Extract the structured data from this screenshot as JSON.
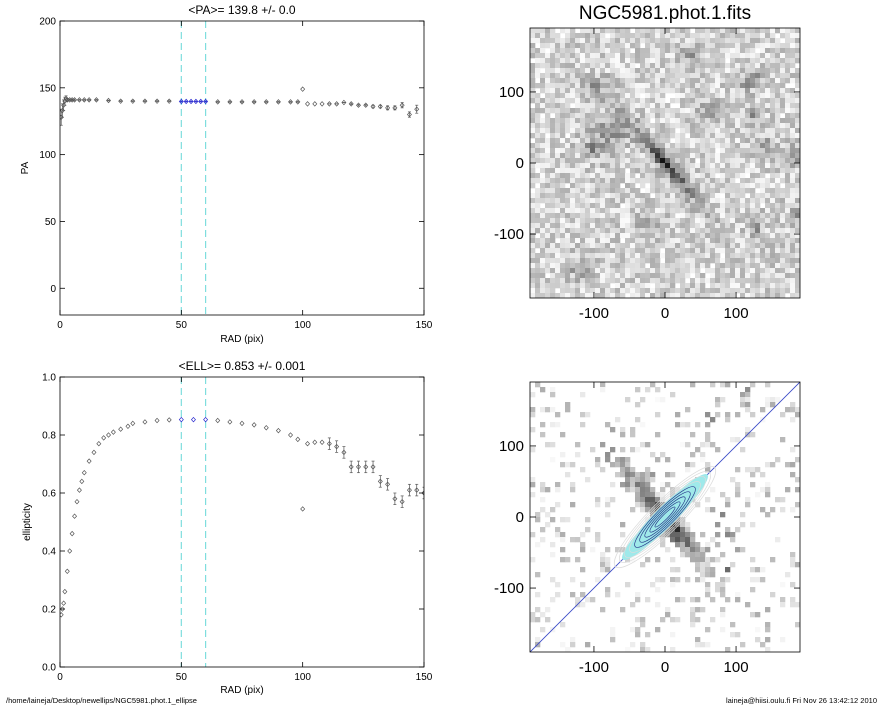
{
  "chart_data": [
    {
      "type": "scatter",
      "title": "<PA>= 139.8 +/-   0.0",
      "xlabel": "RAD (pix)",
      "ylabel": "PA",
      "xlim": [
        0,
        150
      ],
      "ylim": [
        -20,
        200
      ],
      "xticks": [
        "0",
        "50",
        "100",
        "150"
      ],
      "yticks": [
        "0",
        "50",
        "100",
        "150",
        "200"
      ],
      "vlines": [
        50,
        60
      ],
      "highlight_range": [
        50,
        60
      ],
      "series": [
        {
          "x": [
            0.5,
            1,
            1.5,
            2,
            2.5,
            3,
            4,
            5,
            6,
            8,
            10,
            12,
            15,
            20,
            25,
            30,
            35,
            40,
            45,
            50,
            52,
            54,
            56,
            58,
            60,
            65,
            70,
            75,
            80,
            85,
            90,
            95,
            98,
            100,
            102,
            105,
            108,
            111,
            114,
            117,
            120,
            123,
            126,
            129,
            132,
            135,
            138,
            141,
            144,
            147
          ],
          "y": [
            128,
            133,
            137,
            140,
            142,
            141,
            141,
            141,
            141,
            141,
            141,
            141,
            141,
            140.5,
            140,
            140,
            140,
            140,
            140,
            139.8,
            139.8,
            139.8,
            139.8,
            139.8,
            139.8,
            139.5,
            139.5,
            139.5,
            139.5,
            139.5,
            139.5,
            139.5,
            139.5,
            149,
            138,
            138,
            138,
            138,
            138,
            139,
            138,
            137,
            137,
            136,
            136,
            135,
            135,
            137,
            130,
            134
          ],
          "err": [
            6,
            5,
            4,
            3,
            2,
            1,
            0.5,
            0.5,
            0.5,
            0.3,
            0.3,
            0.3,
            0.3,
            0.3,
            0.3,
            0.3,
            0.3,
            0.3,
            0.3,
            0.3,
            0.3,
            0.3,
            0.3,
            0.3,
            0.3,
            0.3,
            0.3,
            0.3,
            0.3,
            0.3,
            0.3,
            0.3,
            0.3,
            0,
            0,
            0,
            0,
            0,
            0,
            0,
            0.5,
            0.5,
            0.5,
            1,
            1,
            1.5,
            1.5,
            2,
            2,
            3
          ]
        }
      ]
    },
    {
      "type": "scatter",
      "title": "<ELL>= 0.853 +/-  0.001",
      "xlabel": "RAD (pix)",
      "ylabel": "ellipticity",
      "xlim": [
        0,
        150
      ],
      "ylim": [
        0.0,
        1.0
      ],
      "xticks": [
        "0",
        "50",
        "100",
        "150"
      ],
      "yticks": [
        "0.0",
        "0.2",
        "0.4",
        "0.6",
        "0.8",
        "1.0"
      ],
      "vlines": [
        50,
        60
      ],
      "highlight_range": [
        50,
        60
      ],
      "series": [
        {
          "x": [
            0.5,
            1,
            1.5,
            2,
            3,
            4,
            5,
            6,
            7,
            8,
            9,
            10,
            12,
            14,
            16,
            18,
            20,
            22,
            25,
            28,
            30,
            35,
            40,
            45,
            50,
            55,
            60,
            65,
            70,
            75,
            80,
            85,
            90,
            95,
            98,
            100,
            102,
            105,
            108,
            111,
            114,
            117,
            120,
            123,
            126,
            129,
            132,
            135,
            138,
            141,
            144,
            147,
            150
          ],
          "y": [
            0.18,
            0.2,
            0.22,
            0.26,
            0.33,
            0.4,
            0.46,
            0.52,
            0.57,
            0.61,
            0.64,
            0.67,
            0.71,
            0.74,
            0.77,
            0.79,
            0.8,
            0.81,
            0.82,
            0.83,
            0.84,
            0.845,
            0.85,
            0.852,
            0.853,
            0.853,
            0.853,
            0.85,
            0.845,
            0.84,
            0.835,
            0.825,
            0.815,
            0.8,
            0.785,
            0.545,
            0.77,
            0.775,
            0.775,
            0.77,
            0.76,
            0.74,
            0.69,
            0.69,
            0.69,
            0.69,
            0.64,
            0.63,
            0.58,
            0.57,
            0.61,
            0.61,
            0.6
          ]
        }
      ]
    },
    {
      "type": "heatmap",
      "title": "NGC5981.phot.1.fits",
      "xlim": [
        -190,
        190
      ],
      "ylim": [
        -190,
        190
      ],
      "xticks": [
        "-100",
        "0",
        "100"
      ],
      "yticks": [
        "-100",
        "0",
        "100"
      ],
      "colormap": "grayscale-inverted",
      "object_position_angle_deg": 139.8,
      "object_ellipticity": 0.853
    },
    {
      "type": "heatmap",
      "title": "",
      "xlim": [
        -190,
        190
      ],
      "ylim": [
        -190,
        190
      ],
      "xticks": [
        "-100",
        "0",
        "100"
      ],
      "yticks": [
        "-100",
        "0",
        "100"
      ],
      "colormap": "grayscale-inverted",
      "overlays": [
        "isophote-ellipses",
        "major-axis-line",
        "masked-regions"
      ]
    }
  ],
  "footer": {
    "left": "/home/laineja/Desktop/newellips/NGC5981.phot.1_ellipse",
    "right": "laineja@hiisi.oulu.fi  Fri Nov 26 13:42:12 2010"
  },
  "colors": {
    "markers": "#555555",
    "highlight": "#2a2acf",
    "vlines": "#7fdede",
    "ellipse_fill": "#9fe9ea",
    "ellipse_lines": "#2b3b8c",
    "axis_line": "#3b4bc8"
  }
}
